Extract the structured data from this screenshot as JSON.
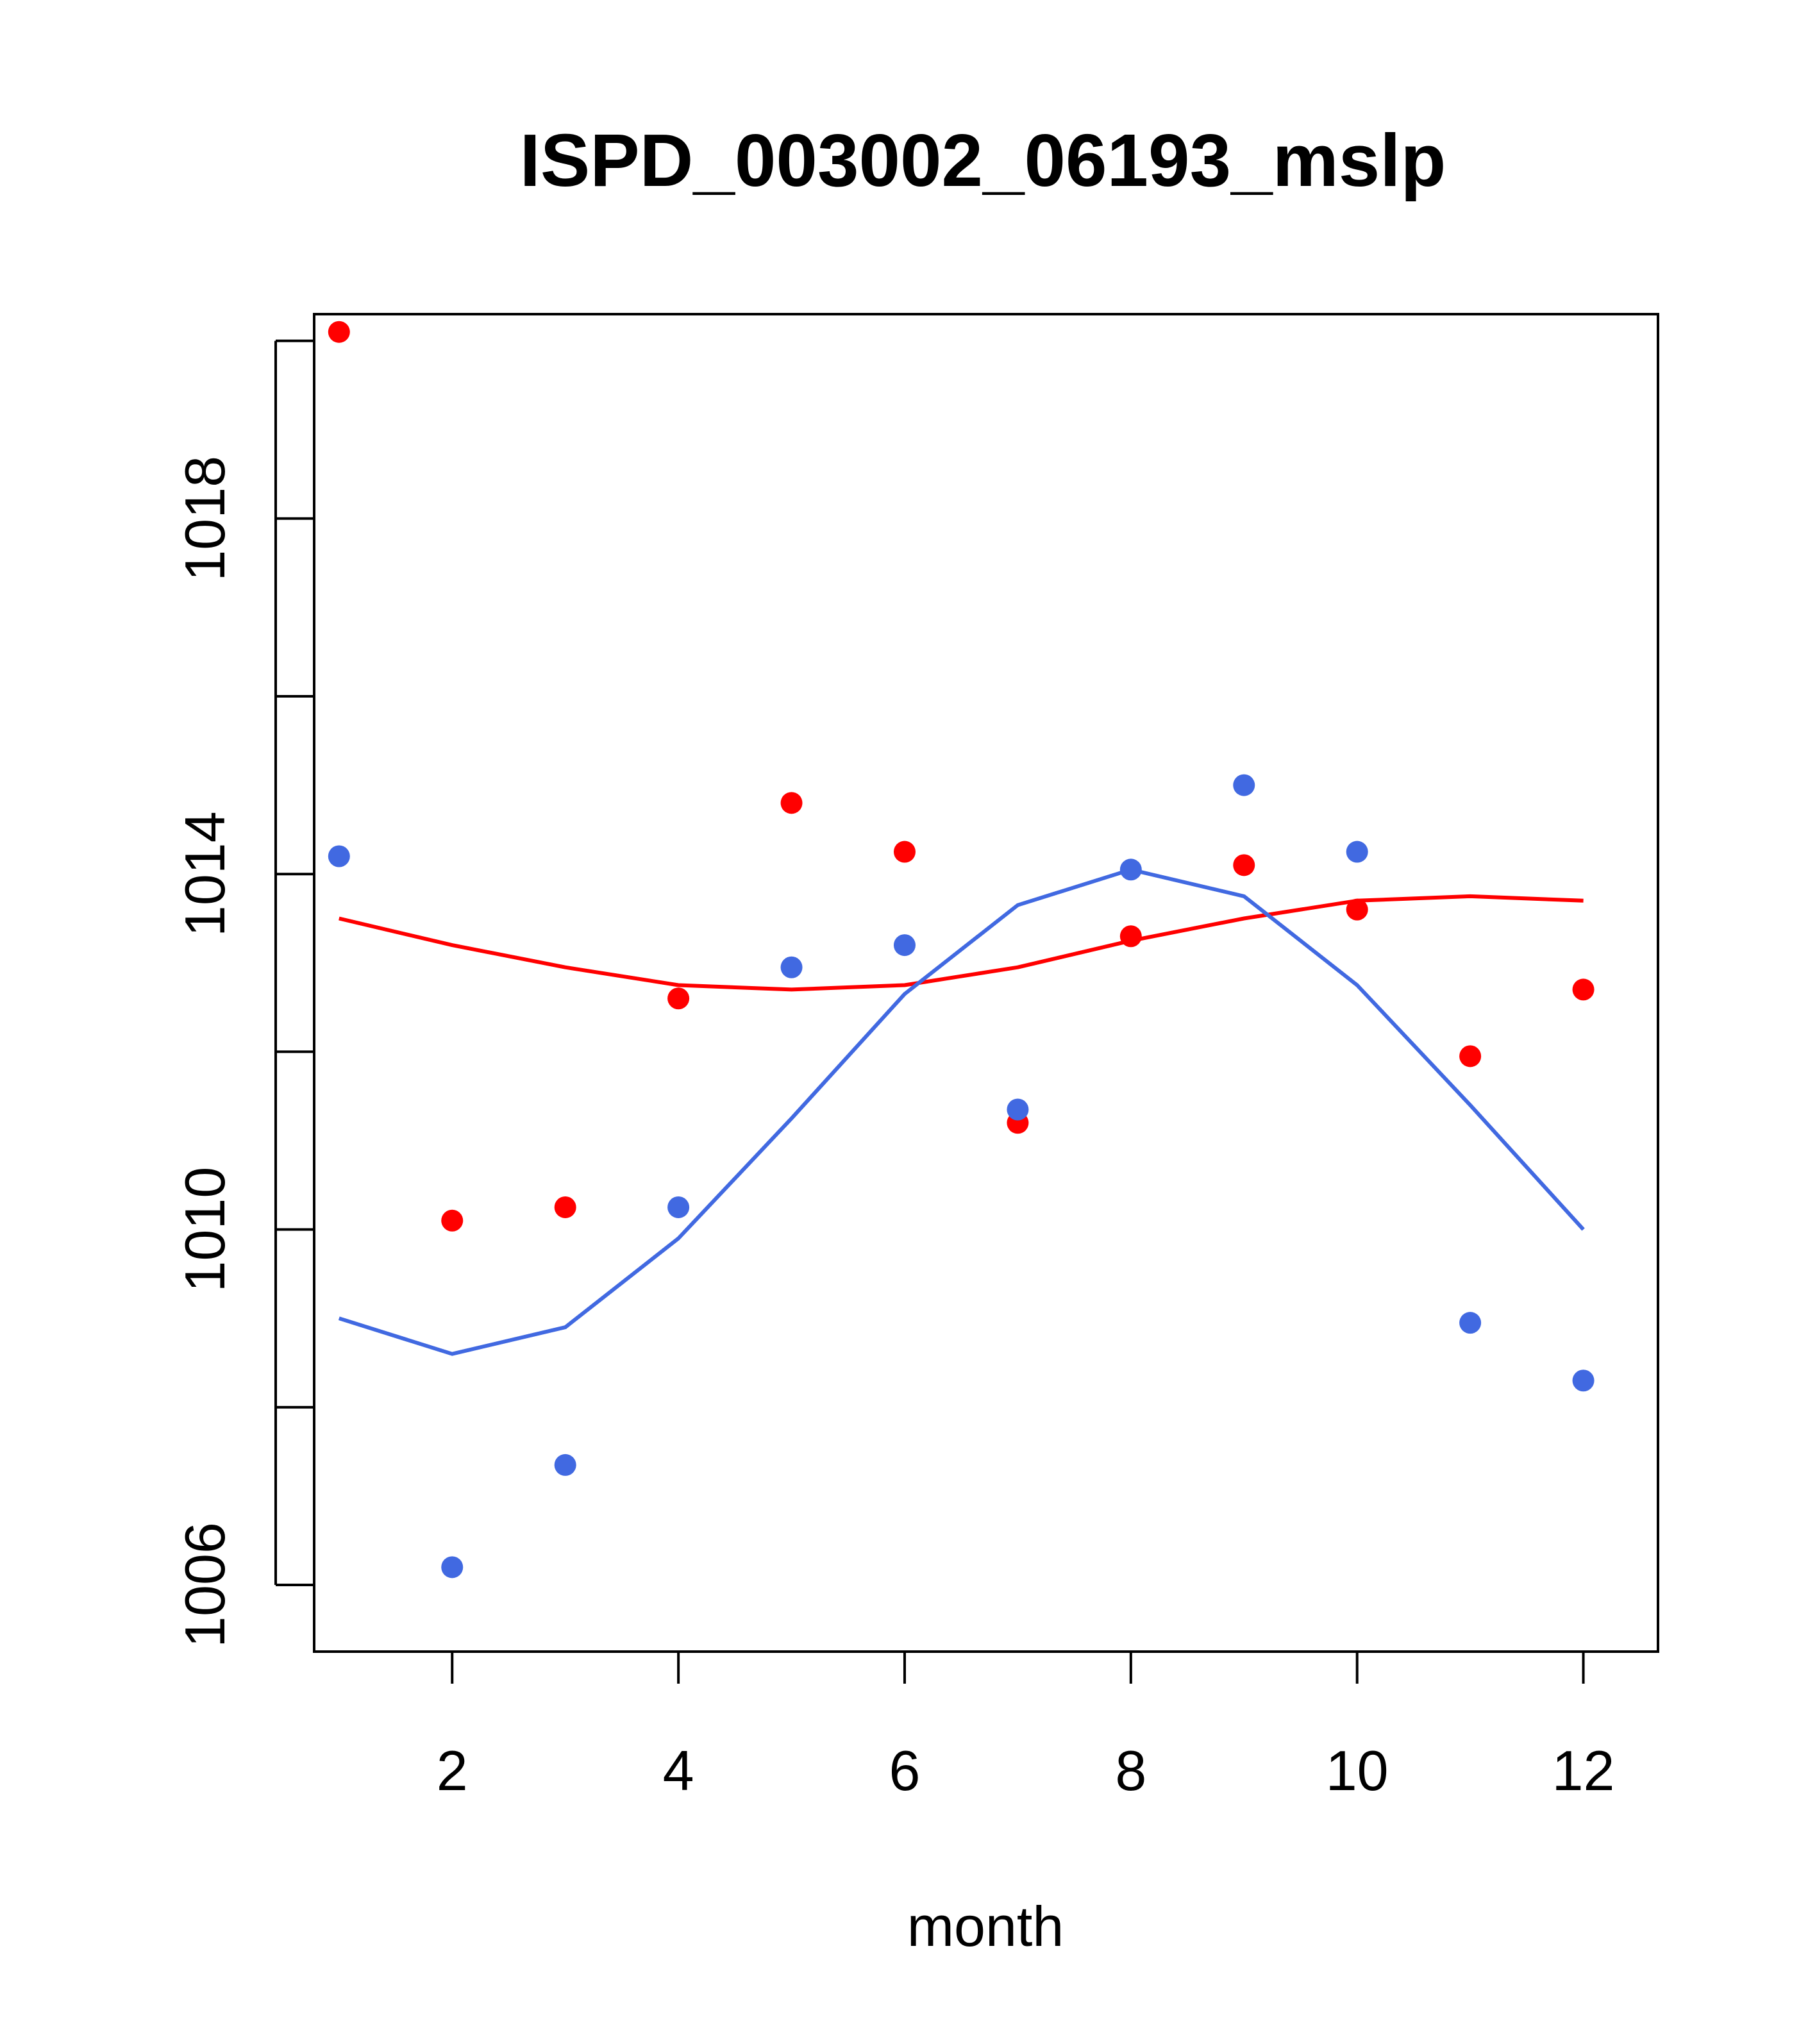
{
  "chart_data": {
    "type": "scatter",
    "title": "ISPD_003002_06193_mslp",
    "xlabel": "month",
    "ylabel": "",
    "xlim": [
      0.78,
      12.66
    ],
    "ylim": [
      1005.25,
      1020.3
    ],
    "xticks": [
      2,
      4,
      6,
      8,
      10,
      12
    ],
    "yticks": [
      1006,
      1008,
      1010,
      1012,
      1014,
      1016,
      1018,
      1020
    ],
    "ytick_labels": [
      "1006",
      "1010",
      "1014",
      "1018"
    ],
    "grid": false,
    "series": [
      {
        "kind": "points",
        "color": "#ff0000",
        "x": [
          1,
          2,
          3,
          4,
          5,
          6,
          7,
          8,
          9,
          10,
          11,
          12
        ],
        "y": [
          1020.1,
          1010.1,
          1010.25,
          1012.6,
          1014.8,
          1014.25,
          1011.2,
          1013.3,
          1014.1,
          1013.6,
          1011.95,
          1012.7
        ]
      },
      {
        "kind": "line",
        "color": "#ff0000",
        "x": [
          1,
          2,
          3,
          4,
          5,
          6,
          7,
          8,
          9,
          10,
          11,
          12
        ],
        "y": [
          1013.5,
          1013.2,
          1012.95,
          1012.75,
          1012.7,
          1012.75,
          1012.95,
          1013.25,
          1013.5,
          1013.7,
          1013.75,
          1013.7
        ]
      },
      {
        "kind": "points",
        "color": "#4169e1",
        "x": [
          1,
          2,
          3,
          4,
          5,
          6,
          7,
          8,
          9,
          10,
          11,
          12
        ],
        "y": [
          1014.2,
          1006.2,
          1007.35,
          1010.25,
          1012.95,
          1013.2,
          1011.35,
          1014.05,
          1015.0,
          1014.25,
          1008.95,
          1008.3
        ]
      },
      {
        "kind": "line",
        "color": "#4169e1",
        "x": [
          1,
          2,
          3,
          4,
          5,
          6,
          7,
          8,
          9,
          10,
          11,
          12
        ],
        "y": [
          1009.0,
          1008.6,
          1008.9,
          1009.9,
          1011.25,
          1012.65,
          1013.65,
          1014.05,
          1013.75,
          1012.75,
          1011.4,
          1010.0
        ]
      }
    ]
  }
}
